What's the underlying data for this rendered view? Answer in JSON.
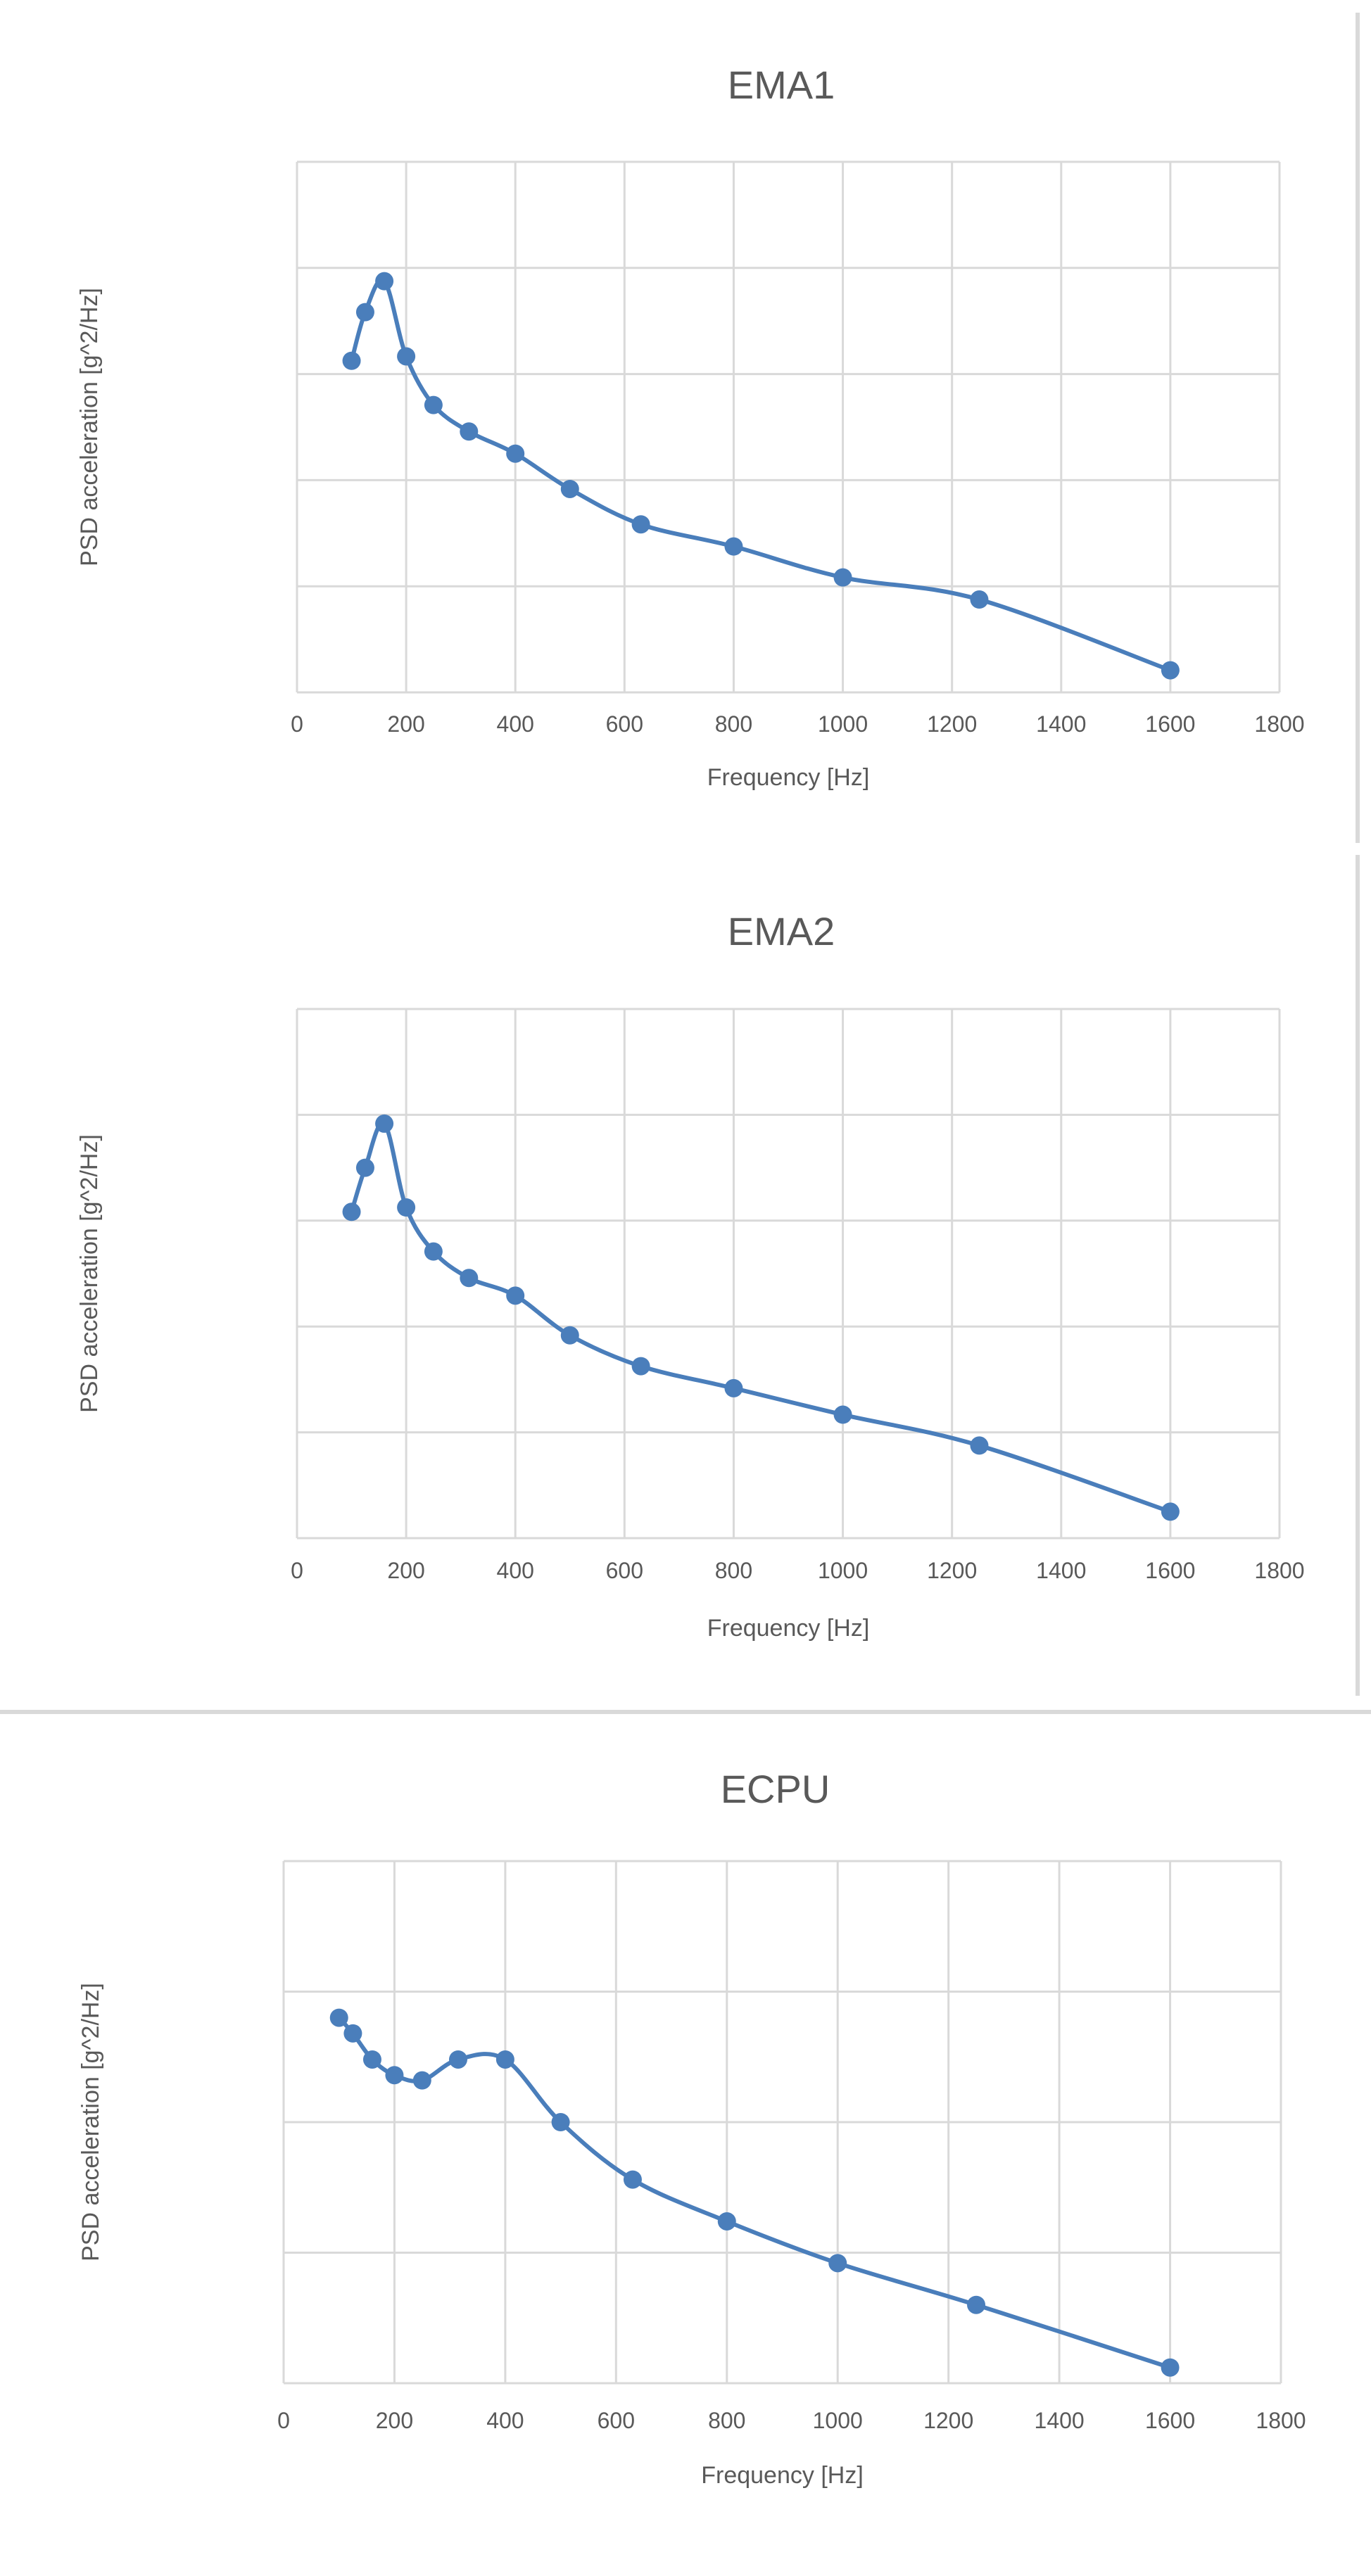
{
  "colors": {
    "series": "#4a7ebb",
    "grid": "#d9d9d9",
    "text": "#595959"
  },
  "chart_data": [
    {
      "type": "line",
      "title": "EMA1",
      "xlabel": "Frequency [Hz]",
      "ylabel": "PSD acceleration [g^2/Hz]",
      "xlim": [
        0,
        1800
      ],
      "ylim": [
        0,
        6
      ],
      "xticks": [
        "0",
        "200",
        "400",
        "600",
        "800",
        "1000",
        "1200",
        "1400",
        "1600",
        "1800"
      ],
      "yticks_labeled": false,
      "grid": true,
      "series": [
        {
          "name": "EMA1",
          "x": [
            100,
            125,
            160,
            200,
            250,
            315,
            400,
            500,
            630,
            800,
            1000,
            1250,
            1600
          ],
          "y": [
            3.75,
            4.3,
            4.65,
            3.8,
            3.25,
            2.95,
            2.7,
            2.3,
            1.9,
            1.65,
            1.3,
            1.05,
            0.25
          ]
        }
      ]
    },
    {
      "type": "line",
      "title": "EMA2",
      "xlabel": "Frequency [Hz]",
      "ylabel": "PSD acceleration [g^2/Hz]",
      "xlim": [
        0,
        1800
      ],
      "ylim": [
        0,
        6
      ],
      "xticks": [
        "0",
        "200",
        "400",
        "600",
        "800",
        "1000",
        "1200",
        "1400",
        "1600",
        "1800"
      ],
      "yticks_labeled": false,
      "grid": true,
      "series": [
        {
          "name": "EMA2",
          "x": [
            100,
            125,
            160,
            200,
            250,
            315,
            400,
            500,
            630,
            800,
            1000,
            1250,
            1600
          ],
          "y": [
            3.7,
            4.2,
            4.7,
            3.75,
            3.25,
            2.95,
            2.75,
            2.3,
            1.95,
            1.7,
            1.4,
            1.05,
            0.3
          ]
        }
      ]
    },
    {
      "type": "line",
      "title": "ECPU",
      "xlabel": "Frequency [Hz]",
      "ylabel": "PSD acceleration [g^2/Hz]",
      "xlim": [
        0,
        1800
      ],
      "ylim": [
        0,
        5
      ],
      "xticks": [
        "0",
        "200",
        "400",
        "600",
        "800",
        "1000",
        "1200",
        "1400",
        "1600",
        "1800"
      ],
      "yticks_labeled": false,
      "grid": true,
      "series": [
        {
          "name": "ECPU",
          "x": [
            100,
            125,
            160,
            200,
            250,
            315,
            400,
            500,
            630,
            800,
            1000,
            1250,
            1600
          ],
          "y": [
            3.5,
            3.35,
            3.1,
            2.95,
            2.9,
            3.1,
            3.1,
            2.5,
            1.95,
            1.55,
            1.15,
            0.75,
            0.15
          ]
        }
      ]
    }
  ]
}
